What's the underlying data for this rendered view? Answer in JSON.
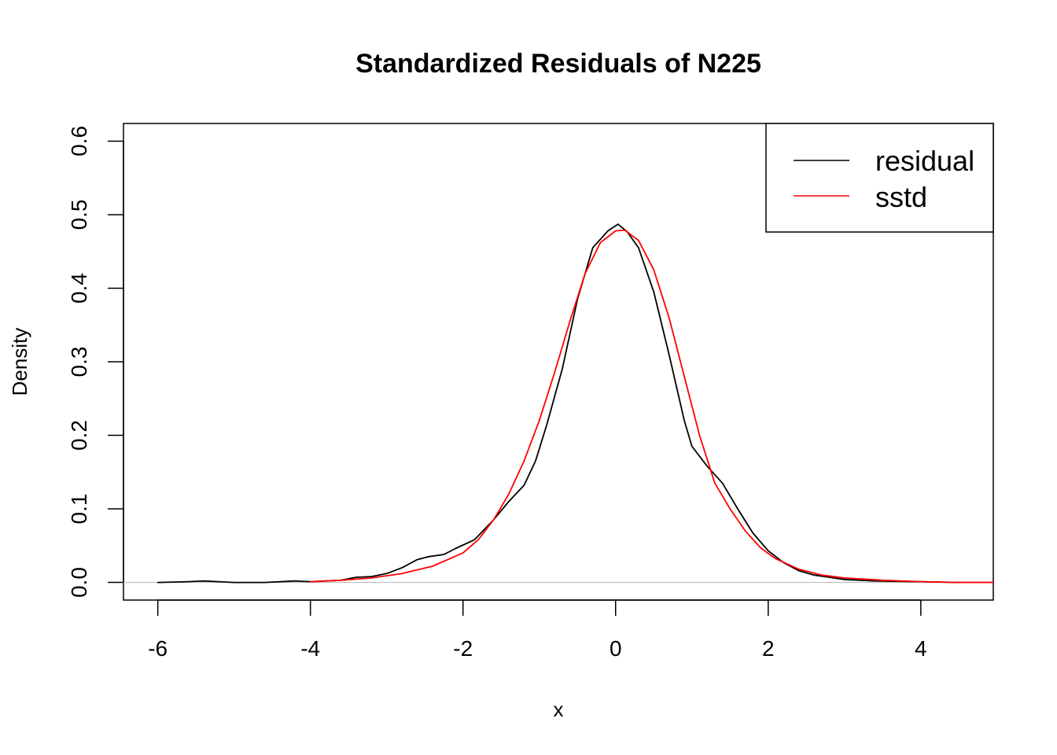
{
  "chart_data": {
    "type": "line",
    "title": "Standardized Residuals of N225",
    "xlabel": "x",
    "ylabel": "Density",
    "xlim": [
      -6.45,
      4.95
    ],
    "ylim": [
      -0.024,
      0.624
    ],
    "x_ticks": [
      -6,
      -4,
      -2,
      0,
      2,
      4
    ],
    "y_ticks": [
      0.0,
      0.1,
      0.2,
      0.3,
      0.4,
      0.5,
      0.6
    ],
    "x_tick_labels": [
      "-6",
      "-4",
      "-2",
      "0",
      "2",
      "4"
    ],
    "y_tick_labels": [
      "0.0",
      "0.1",
      "0.2",
      "0.3",
      "0.4",
      "0.5",
      "0.6"
    ],
    "baseline": {
      "y": 0.0,
      "color": "#bebebe"
    },
    "legend": {
      "position": "top-right",
      "entries": [
        {
          "label": "residual",
          "color": "#000000"
        },
        {
          "label": "sstd",
          "color": "#ff0000"
        }
      ]
    },
    "series": [
      {
        "name": "residual",
        "color": "#000000",
        "points": [
          [
            -6.0,
            0.0
          ],
          [
            -5.6,
            0.001
          ],
          [
            -5.4,
            0.002
          ],
          [
            -5.2,
            0.001
          ],
          [
            -5.0,
            0.0
          ],
          [
            -4.6,
            0.0
          ],
          [
            -4.2,
            0.002
          ],
          [
            -4.0,
            0.001
          ],
          [
            -3.6,
            0.003
          ],
          [
            -3.4,
            0.007
          ],
          [
            -3.2,
            0.008
          ],
          [
            -3.0,
            0.012
          ],
          [
            -2.8,
            0.02
          ],
          [
            -2.6,
            0.031
          ],
          [
            -2.45,
            0.035
          ],
          [
            -2.25,
            0.038
          ],
          [
            -2.1,
            0.046
          ],
          [
            -1.85,
            0.058
          ],
          [
            -1.6,
            0.085
          ],
          [
            -1.4,
            0.11
          ],
          [
            -1.2,
            0.132
          ],
          [
            -1.05,
            0.165
          ],
          [
            -0.9,
            0.215
          ],
          [
            -0.7,
            0.29
          ],
          [
            -0.5,
            0.385
          ],
          [
            -0.3,
            0.455
          ],
          [
            -0.1,
            0.478
          ],
          [
            0.03,
            0.487
          ],
          [
            0.15,
            0.477
          ],
          [
            0.3,
            0.455
          ],
          [
            0.5,
            0.395
          ],
          [
            0.7,
            0.31
          ],
          [
            0.9,
            0.22
          ],
          [
            1.0,
            0.185
          ],
          [
            1.2,
            0.158
          ],
          [
            1.4,
            0.135
          ],
          [
            1.6,
            0.1
          ],
          [
            1.8,
            0.067
          ],
          [
            2.0,
            0.043
          ],
          [
            2.2,
            0.027
          ],
          [
            2.4,
            0.016
          ],
          [
            2.6,
            0.01
          ],
          [
            2.8,
            0.007
          ],
          [
            3.0,
            0.004
          ],
          [
            3.4,
            0.002
          ],
          [
            4.0,
            0.001
          ],
          [
            4.5,
            0.0
          ],
          [
            4.95,
            0.0
          ]
        ]
      },
      {
        "name": "sstd",
        "color": "#ff0000",
        "points": [
          [
            -4.0,
            0.001
          ],
          [
            -3.6,
            0.003
          ],
          [
            -3.2,
            0.006
          ],
          [
            -2.8,
            0.012
          ],
          [
            -2.4,
            0.022
          ],
          [
            -2.0,
            0.04
          ],
          [
            -1.8,
            0.058
          ],
          [
            -1.6,
            0.085
          ],
          [
            -1.4,
            0.12
          ],
          [
            -1.2,
            0.165
          ],
          [
            -1.0,
            0.22
          ],
          [
            -0.8,
            0.285
          ],
          [
            -0.6,
            0.355
          ],
          [
            -0.4,
            0.42
          ],
          [
            -0.2,
            0.462
          ],
          [
            0.0,
            0.478
          ],
          [
            0.12,
            0.479
          ],
          [
            0.3,
            0.465
          ],
          [
            0.5,
            0.425
          ],
          [
            0.7,
            0.36
          ],
          [
            0.9,
            0.28
          ],
          [
            1.1,
            0.2
          ],
          [
            1.3,
            0.135
          ],
          [
            1.5,
            0.1
          ],
          [
            1.7,
            0.07
          ],
          [
            1.9,
            0.047
          ],
          [
            2.1,
            0.032
          ],
          [
            2.4,
            0.018
          ],
          [
            2.7,
            0.01
          ],
          [
            3.0,
            0.006
          ],
          [
            3.5,
            0.003
          ],
          [
            4.0,
            0.001
          ],
          [
            4.5,
            0.0
          ],
          [
            4.95,
            0.0
          ]
        ]
      }
    ]
  }
}
